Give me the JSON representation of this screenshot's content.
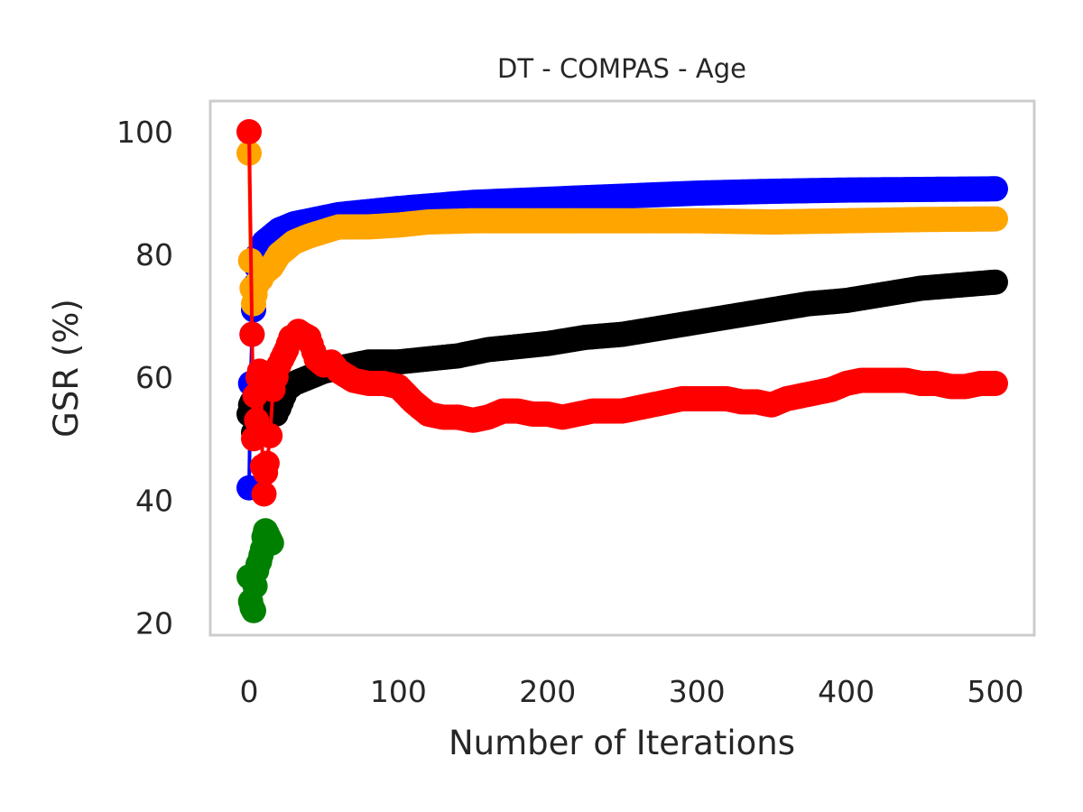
{
  "chart_data": {
    "type": "line",
    "title": "DT - COMPAS - Age",
    "xlabel": "Number of Iterations",
    "ylabel": "GSR (%)",
    "xlim": [
      -26,
      526
    ],
    "ylim": [
      18,
      105
    ],
    "xticks": [
      0,
      100,
      200,
      300,
      400,
      500
    ],
    "yticks": [
      20,
      40,
      60,
      80,
      100
    ],
    "grid": false,
    "legend": "none",
    "series": [
      {
        "color": "#0000ff",
        "x": [
          0,
          1,
          2,
          3,
          4,
          5,
          6,
          8,
          10,
          15,
          20,
          30,
          40,
          60,
          80,
          100,
          150,
          200,
          250,
          300,
          350,
          400,
          450,
          500
        ],
        "y": [
          42,
          59,
          67,
          71,
          75,
          78,
          80,
          81,
          82,
          83,
          84,
          85,
          85.5,
          86.5,
          87,
          87.5,
          88.5,
          89,
          89.5,
          90,
          90.3,
          90.5,
          90.6,
          90.7
        ]
      },
      {
        "color": "#ffa500",
        "x": [
          0,
          1,
          2,
          3,
          4,
          5,
          6,
          8,
          10,
          15,
          20,
          30,
          40,
          60,
          80,
          100,
          120,
          150,
          200,
          250,
          300,
          350,
          400,
          450,
          500
        ],
        "y": [
          96.5,
          79,
          74.5,
          72,
          73.5,
          75,
          75.5,
          76,
          77,
          78,
          80,
          82,
          83,
          84.5,
          84.5,
          84.8,
          85.3,
          85.5,
          85.5,
          85.5,
          85.5,
          85.3,
          85.5,
          85.7,
          85.8
        ]
      },
      {
        "color": "#000000",
        "x": [
          0,
          1,
          2,
          3,
          4,
          5,
          6,
          8,
          10,
          12,
          15,
          18,
          20,
          25,
          30,
          40,
          50,
          60,
          70,
          80,
          90,
          100,
          120,
          140,
          160,
          180,
          200,
          225,
          250,
          275,
          300,
          325,
          350,
          375,
          400,
          425,
          450,
          475,
          500
        ],
        "y": [
          54,
          55.5,
          56,
          51,
          50.5,
          52,
          53,
          54,
          55,
          55.5,
          54.5,
          54,
          55,
          58,
          59,
          60,
          61,
          61.5,
          62,
          62.5,
          62.5,
          62.5,
          63,
          63.5,
          64.5,
          65,
          65.5,
          66.5,
          67,
          68,
          69,
          70,
          71,
          72,
          72.5,
          73.5,
          74.5,
          75,
          75.5
        ]
      },
      {
        "color": "#ff0000",
        "x": [
          0,
          2,
          3,
          4,
          5,
          6,
          7,
          8,
          9,
          10,
          11,
          12,
          14,
          16,
          18,
          20,
          22,
          25,
          28,
          30,
          33,
          36,
          40,
          45,
          50,
          55,
          60,
          70,
          80,
          90,
          100,
          110,
          120,
          130,
          140,
          150,
          160,
          170,
          180,
          190,
          200,
          210,
          220,
          230,
          240,
          250,
          260,
          270,
          280,
          290,
          300,
          310,
          320,
          330,
          340,
          350,
          360,
          370,
          380,
          390,
          400,
          410,
          420,
          430,
          440,
          450,
          460,
          470,
          480,
          490,
          500
        ],
        "y": [
          100,
          67,
          50,
          57,
          53,
          60,
          61,
          60,
          45.5,
          41,
          44.5,
          46,
          50.5,
          58,
          60,
          62,
          63,
          64.5,
          66.5,
          66.5,
          67.5,
          67,
          66.5,
          63,
          62,
          62.5,
          61,
          59.5,
          59,
          59,
          58.5,
          56,
          54,
          53.5,
          53.5,
          53,
          53.5,
          54.5,
          54.5,
          54,
          54,
          53.5,
          54,
          54.5,
          54.5,
          54.5,
          55,
          55.5,
          56,
          56.5,
          56.5,
          56.5,
          56.5,
          56,
          56,
          55.5,
          56.5,
          57,
          57.5,
          58,
          59,
          59.5,
          59.5,
          59.5,
          59.5,
          59,
          59,
          58.5,
          58.5,
          59,
          59
        ]
      },
      {
        "color": "#008000",
        "x": [
          0,
          1,
          2,
          3,
          4,
          5,
          6,
          7,
          8,
          9,
          10,
          11,
          12,
          13,
          14,
          15
        ],
        "y": [
          27.5,
          23.5,
          22.5,
          22,
          26,
          28.5,
          29.5,
          30,
          31,
          32,
          34,
          35,
          34.5,
          34,
          33.5,
          33
        ]
      }
    ]
  }
}
